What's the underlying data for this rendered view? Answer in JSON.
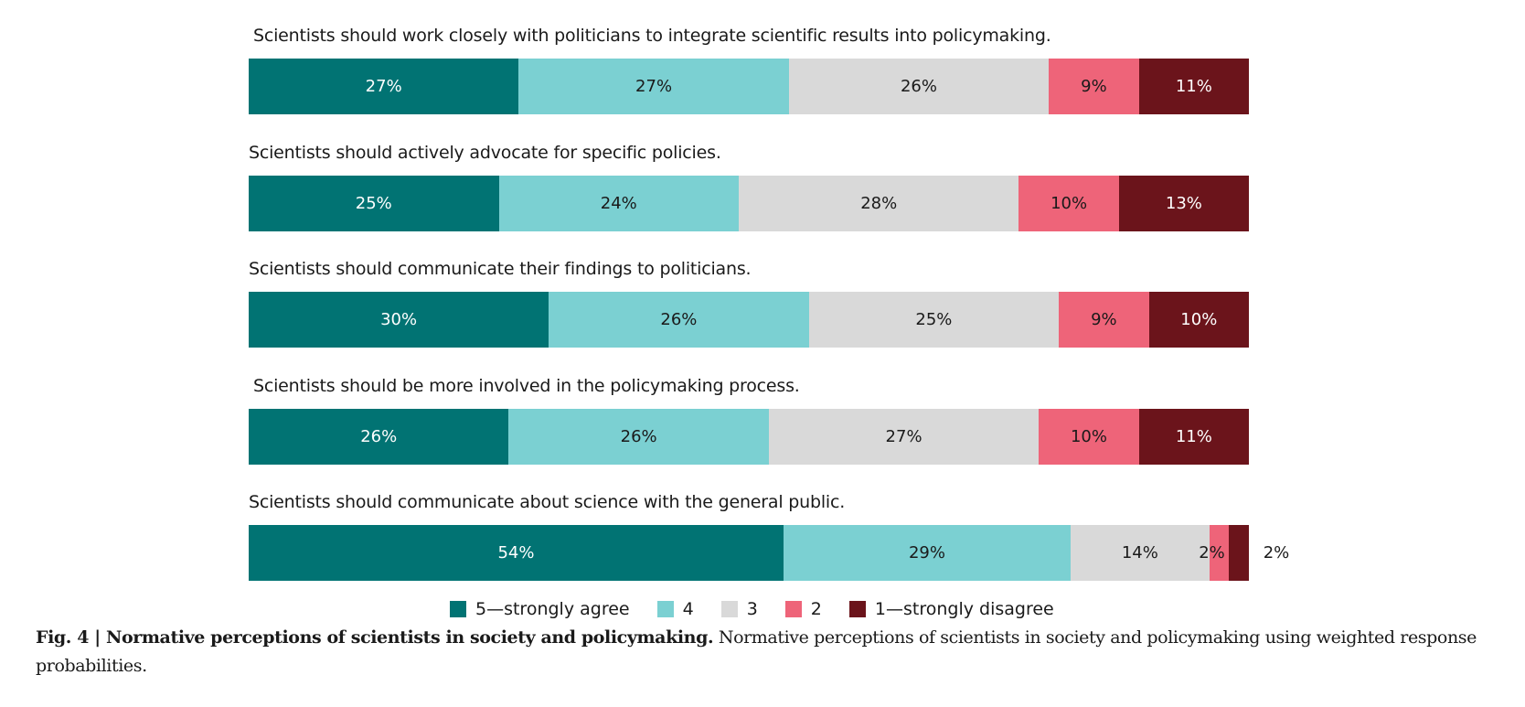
{
  "chart_data": {
    "type": "bar",
    "orientation": "horizontal-stacked-100",
    "title": "",
    "xlabel": "",
    "ylabel": "",
    "unit": "%",
    "categories": [
      "Scientists should work closely with politicians to integrate scientific results into policymaking.",
      "Scientists should actively advocate for specific policies.",
      "Scientists should communicate their findings to politicians.",
      "Scientists should be more involved in the policymaking process.",
      "Scientists should communicate about science with the general public."
    ],
    "series": [
      {
        "name": "5—strongly agree",
        "color": "#017373",
        "label_color": "#ffffff",
        "values": [
          27,
          25,
          30,
          26,
          54
        ]
      },
      {
        "name": "4",
        "color": "#7bd0d2",
        "label_color": "#1a1a1a",
        "values": [
          27,
          24,
          26,
          26,
          29
        ]
      },
      {
        "name": "3",
        "color": "#d9d9d9",
        "label_color": "#1a1a1a",
        "values": [
          26,
          28,
          25,
          27,
          14
        ]
      },
      {
        "name": "2",
        "color": "#ee6479",
        "label_color": "#1a1a1a",
        "values": [
          9,
          10,
          9,
          10,
          2
        ]
      },
      {
        "name": "1—strongly disagree",
        "color": "#6b141b",
        "label_color": "#ffffff",
        "values": [
          11,
          13,
          10,
          11,
          2
        ]
      }
    ],
    "legend": {
      "placement": "bottom-center"
    },
    "grid": false
  },
  "caption": {
    "fig_label": "Fig. 4 | ",
    "title": "Normative perceptions of scientists in society and policymaking.",
    "text": " Normative perceptions of scientists in society and policymaking using weighted response probabilities."
  }
}
